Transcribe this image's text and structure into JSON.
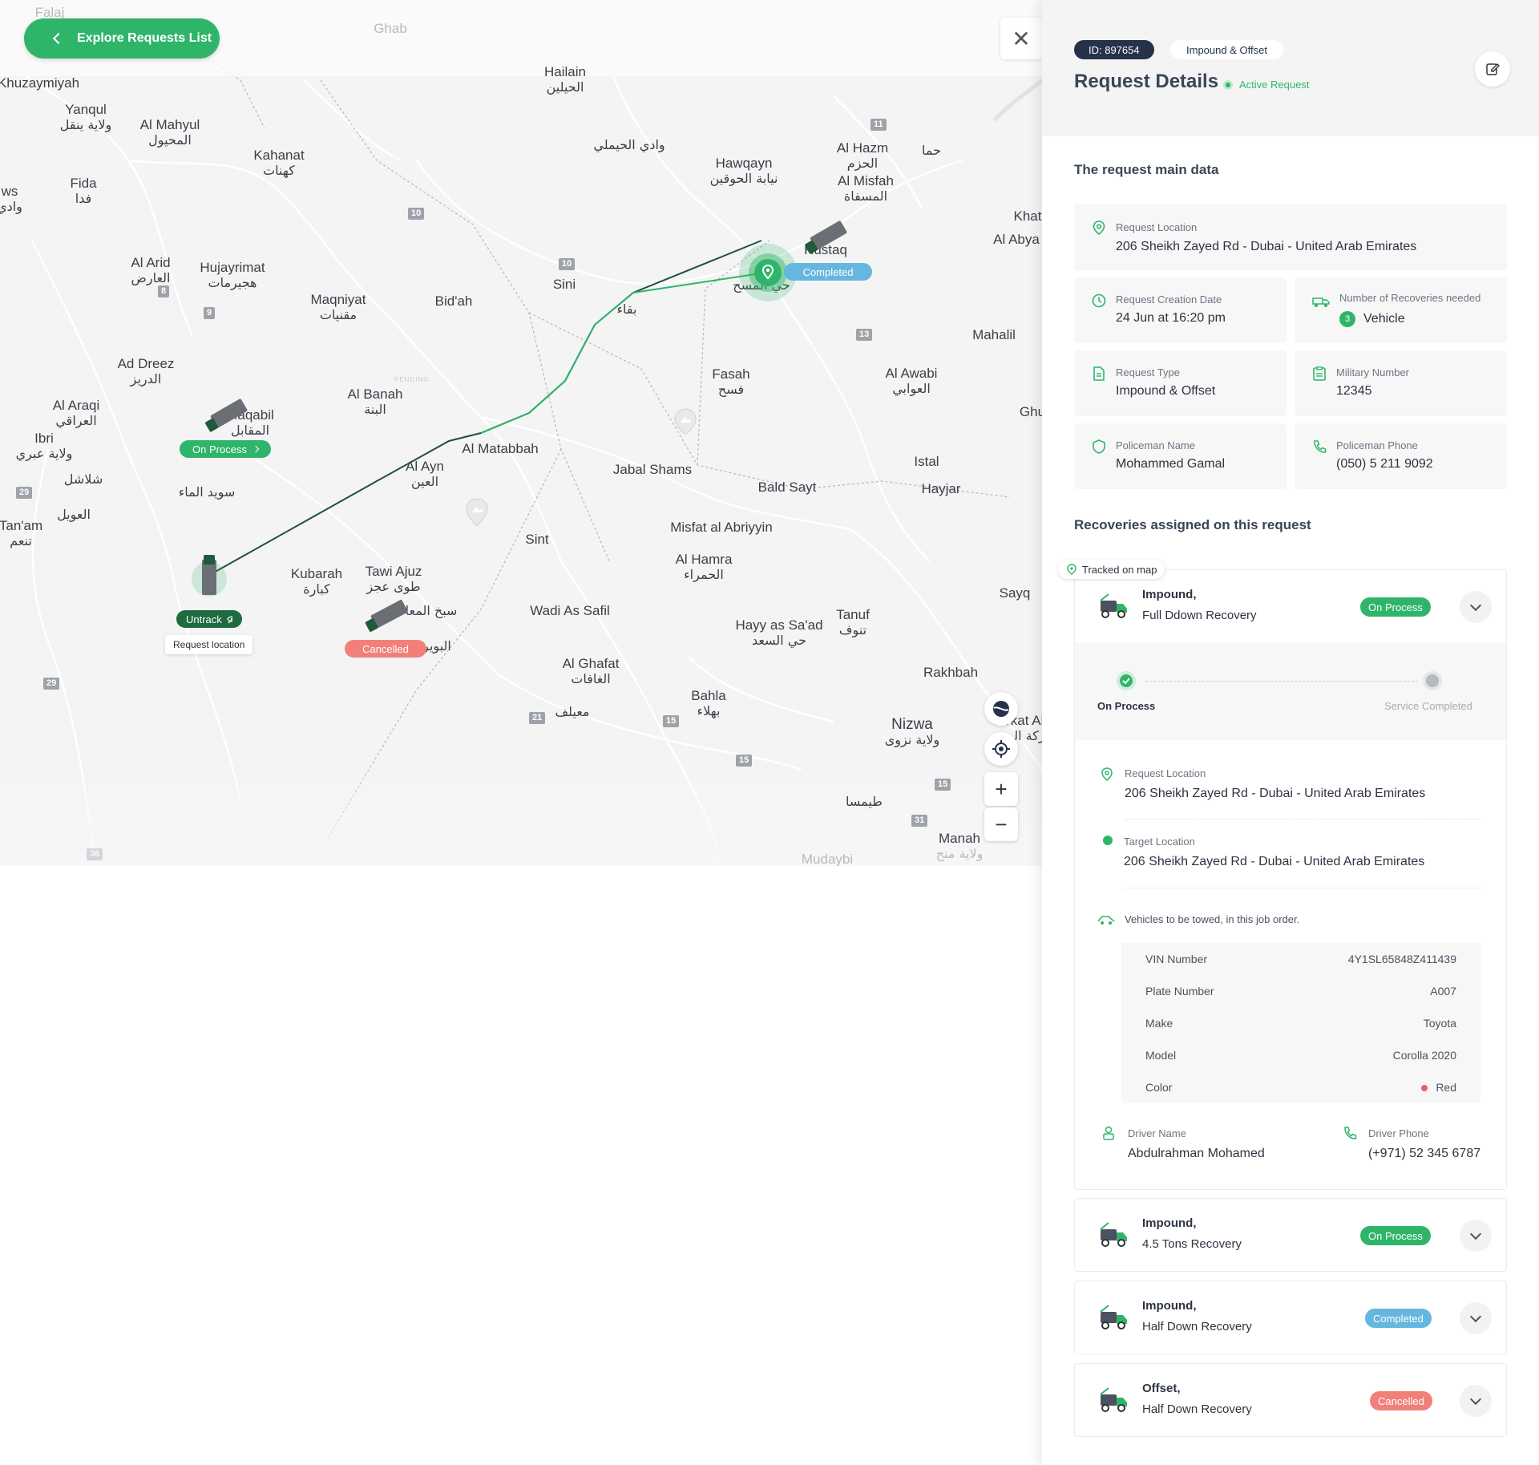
{
  "map": {
    "explore_button": "Explore Requests List",
    "places": [
      {
        "name": "Falaj",
        "ar": ""
      },
      {
        "name": "Ghab",
        "ar": ""
      },
      {
        "name": "Hailain",
        "ar": "الحيلين"
      },
      {
        "name": "Khuzaymiyah",
        "ar": ""
      },
      {
        "name": "Yanqul",
        "ar": "ولاية ينقل"
      },
      {
        "name": "Al Mahyul",
        "ar": "المحيول"
      },
      {
        "name": "Kahanat",
        "ar": "كهنات"
      },
      {
        "name": "Fida",
        "ar": "فدا"
      },
      {
        "name": "ws",
        "ar": "وادي"
      },
      {
        "name": "",
        "ar": "وادي الحيملي"
      },
      {
        "name": "Hawqayn",
        "ar": "نيابة الحوقين"
      },
      {
        "name": "Al Hazm",
        "ar": "الحزم"
      },
      {
        "name": "Al Misfah",
        "ar": "المسفاة"
      },
      {
        "name": "",
        "ar": "حما"
      },
      {
        "name": "Khat",
        "ar": ""
      },
      {
        "name": "Al Abya",
        "ar": ""
      },
      {
        "name": "Al Arid",
        "ar": "العارض"
      },
      {
        "name": "Hujayrimat",
        "ar": "هجيرمات"
      },
      {
        "name": "Maqniyat",
        "ar": "مقنيات"
      },
      {
        "name": "Bid'ah",
        "ar": ""
      },
      {
        "name": "Sini",
        "ar": ""
      },
      {
        "name": "",
        "ar": "بقاء"
      },
      {
        "name": "Rustaq",
        "ar": ""
      },
      {
        "name": "Mahalil",
        "ar": ""
      },
      {
        "name": "Ad Dreez",
        "ar": "الدريز"
      },
      {
        "name": "Al Araqi",
        "ar": "العراقي"
      },
      {
        "name": "Ibri",
        "ar": "ولاية عبري"
      },
      {
        "name": "Al Banah",
        "ar": "البنة"
      },
      {
        "name": "Fasah",
        "ar": "فسح"
      },
      {
        "name": "Al Awabi",
        "ar": "العوابي"
      },
      {
        "name": "Ghu",
        "ar": ""
      },
      {
        "name": "Maqabil",
        "ar": "المقابل"
      },
      {
        "name": "",
        "ar": "شلاشل"
      },
      {
        "name": "",
        "ar": "سويد الماء"
      },
      {
        "name": "Al Ayn",
        "ar": "العين"
      },
      {
        "name": "Al Matabbah",
        "ar": ""
      },
      {
        "name": "Jabal Shams",
        "ar": ""
      },
      {
        "name": "Istal",
        "ar": ""
      },
      {
        "name": "Bald Sayt",
        "ar": ""
      },
      {
        "name": "Hayjar",
        "ar": ""
      },
      {
        "name": "Tan'am",
        "ar": "تنعم"
      },
      {
        "name": "",
        "ar": "العويل"
      },
      {
        "name": "Sint",
        "ar": ""
      },
      {
        "name": "Misfat al Abriyyin",
        "ar": ""
      },
      {
        "name": "Al Hamra",
        "ar": "الحمراء"
      },
      {
        "name": "Kubarah",
        "ar": "كبارة"
      },
      {
        "name": "Tawi Ajuz",
        "ar": "طوى عجز"
      },
      {
        "name": "",
        "ar": "سبخ المعا"
      },
      {
        "name": "Wadi As Safil",
        "ar": ""
      },
      {
        "name": "Sayq",
        "ar": ""
      },
      {
        "name": "Hayy as Sa'ad",
        "ar": "حي السعد"
      },
      {
        "name": "Tanuf",
        "ar": "تنوف"
      },
      {
        "name": "",
        "ar": "البوير"
      },
      {
        "name": "Al Ghafat",
        "ar": "الغافات"
      },
      {
        "name": "Rakhbah",
        "ar": ""
      },
      {
        "name": "Bahla",
        "ar": "بهلاء"
      },
      {
        "name": "",
        "ar": "معيلف"
      },
      {
        "name": "Nizwa",
        "ar": "ولاية نزوى"
      },
      {
        "name": "Birkat Al Mou",
        "ar": "بركة الموز"
      },
      {
        "name": "",
        "ar": "طيمسا"
      },
      {
        "name": "Manah",
        "ar": "ولاية منح"
      },
      {
        "name": "Mudaybi",
        "ar": ""
      },
      {
        "name": "",
        "ar": "حي المسح"
      }
    ],
    "road_shields": [
      "11",
      "10",
      "10",
      "8",
      "9",
      "13",
      "29",
      "29",
      "21",
      "15",
      "15",
      "15",
      "31",
      "36"
    ],
    "markers": {
      "completed": "Completed",
      "on_process": "On Process",
      "untrack": "Untrack",
      "request_location": "Request location",
      "cancelled": "Cancelled",
      "pending": "PENDING"
    },
    "controls": {
      "zoom_in": "+",
      "zoom_out": "−"
    }
  },
  "panel": {
    "id_pill": "ID: 897654",
    "type_pill": "Impound & Offset",
    "title": "Request Details",
    "status": "Active Request",
    "main_section_title": "The request main data",
    "fields": {
      "request_location": {
        "label": "Request Location",
        "value": "206 Sheikh Zayed Rd - Dubai - United Arab Emirates"
      },
      "creation_date": {
        "label": "Request Creation Date",
        "value": "24 Jun at 16:20 pm"
      },
      "recoveries_needed": {
        "label": "Number of Recoveries needed",
        "count": "3",
        "value": "Vehicle"
      },
      "request_type": {
        "label": "Request Type",
        "value": "Impound & Offset"
      },
      "military_number": {
        "label": "Military Number",
        "value": "12345"
      },
      "policeman_name": {
        "label": "Policeman Name",
        "value": "Mohammed Gamal"
      },
      "policeman_phone": {
        "label": "Policeman Phone",
        "value": "(050) 5 211 9092"
      }
    },
    "recoveries_title": "Recoveries assigned on this request",
    "tracked_tag": "Tracked on map",
    "recoveries": [
      {
        "type": "Impound,",
        "name": "Full Ddown Recovery",
        "status": "On Process",
        "status_color": "#2fb56a"
      },
      {
        "type": "Impound,",
        "name": "4.5 Tons Recovery",
        "status": "On Process",
        "status_color": "#2fb56a"
      },
      {
        "type": "Impound,",
        "name": "Half Down Recovery",
        "status": "Completed",
        "status_color": "#65b7df"
      },
      {
        "type": "Offset,",
        "name": "Half Down Recovery",
        "status": "Cancelled",
        "status_color": "#f2807a"
      }
    ],
    "expanded": {
      "progress": {
        "step1": "On Process",
        "step2": "Service Completed"
      },
      "request_location": {
        "label": "Request Location",
        "value": "206 Sheikh Zayed Rd - Dubai - United Arab Emirates"
      },
      "target_location": {
        "label": "Target Location",
        "value": "206 Sheikh Zayed Rd - Dubai - United Arab Emirates"
      },
      "vehicles_title": "Vehicles to be towed, in this job order.",
      "vehicle": [
        {
          "k": "VIN Number",
          "v": "4Y1SL65848Z411439"
        },
        {
          "k": "Plate Number",
          "v": "A007"
        },
        {
          "k": "Make",
          "v": "Toyota"
        },
        {
          "k": "Model",
          "v": "Corolla 2020"
        },
        {
          "k": "Color",
          "v": "Red"
        }
      ],
      "driver_name": {
        "label": "Driver Name",
        "value": "Abdulrahman Mohamed"
      },
      "driver_phone": {
        "label": "Driver Phone",
        "value": "(+971) 52 345 6787"
      }
    }
  },
  "colors": {
    "accent": "#2fb56a",
    "navy": "#25324a",
    "completed": "#65b7df",
    "cancelled": "#f2807a",
    "dark_green": "#1d6b3f"
  }
}
